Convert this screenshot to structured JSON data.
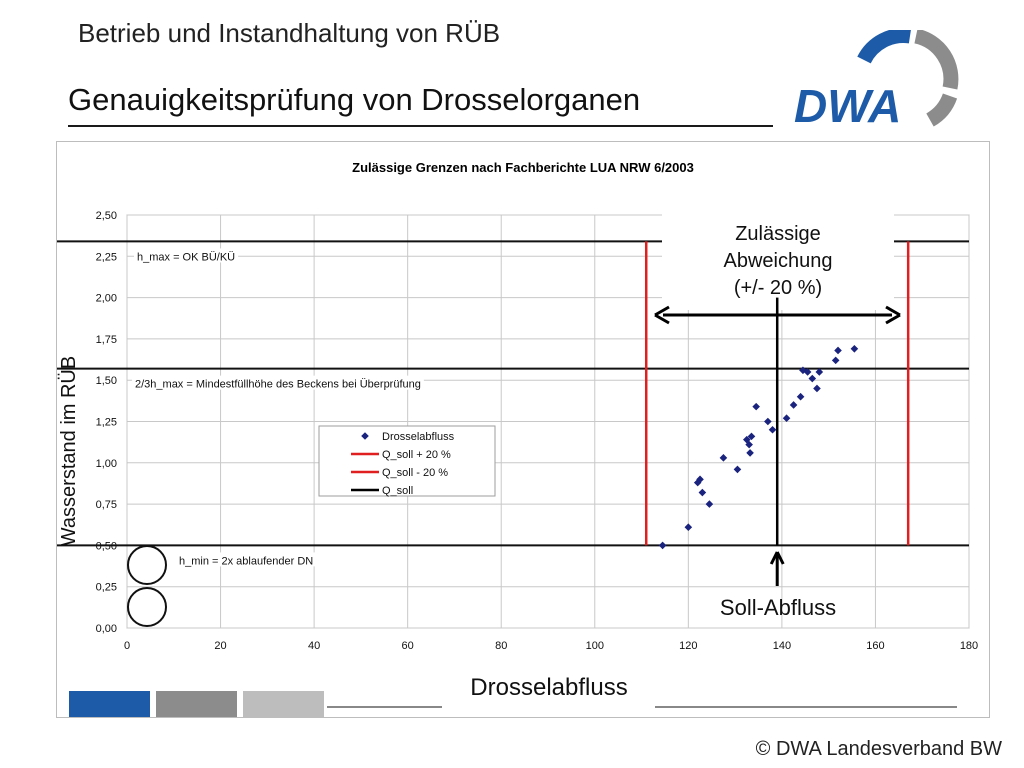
{
  "header": {
    "supertitle": "Betrieb und Instandhaltung von RÜB",
    "title": "Genauigkeitsprüfung von Drosselorganen",
    "logo_text": "DWA",
    "brand_blue": "#1d5ba8",
    "brand_gray": "#8c8c8c"
  },
  "footer": {
    "copyright": "© DWA Landesverband BW"
  },
  "chart_data": {
    "type": "scatter",
    "title": "Zulässige Grenzen nach Fachberichte LUA NRW 6/2003",
    "xlabel": "Drosselabfluss",
    "ylabel": "Wasserstand im RÜB",
    "xlim": [
      0,
      180
    ],
    "ylim": [
      0,
      2.5
    ],
    "x_ticks": [
      0,
      20,
      40,
      60,
      80,
      100,
      120,
      140,
      160,
      180
    ],
    "y_ticks": [
      "0,00",
      "0,25",
      "0,50",
      "0,75",
      "1,00",
      "1,25",
      "1,50",
      "1,75",
      "2,00",
      "2,25",
      "2,50"
    ],
    "grid": true,
    "legend": {
      "placement": "center",
      "entries": [
        {
          "name": "Drosselabfluss",
          "marker": "diamond",
          "color": "#1a237e"
        },
        {
          "name": "Q_soll + 20 %",
          "marker": "line",
          "color": "#e02020"
        },
        {
          "name": "Q_soll - 20 %",
          "marker": "line",
          "color": "#e02020"
        },
        {
          "name": "Q_soll",
          "marker": "line",
          "color": "#000000"
        }
      ]
    },
    "series": [
      {
        "name": "Drosselabfluss",
        "kind": "scatter",
        "color": "#1a237e",
        "points": [
          [
            114.5,
            0.5
          ],
          [
            120,
            0.61
          ],
          [
            122,
            0.88
          ],
          [
            122.5,
            0.9
          ],
          [
            123,
            0.82
          ],
          [
            124.5,
            0.75
          ],
          [
            127.5,
            1.03
          ],
          [
            130.5,
            0.96
          ],
          [
            132.5,
            1.14
          ],
          [
            133,
            1.11
          ],
          [
            133.2,
            1.06
          ],
          [
            133.5,
            1.16
          ],
          [
            134.5,
            1.34
          ],
          [
            137,
            1.25
          ],
          [
            138,
            1.2
          ],
          [
            141,
            1.27
          ],
          [
            142.5,
            1.35
          ],
          [
            144,
            1.4
          ],
          [
            144.5,
            1.56
          ],
          [
            145.5,
            1.55
          ],
          [
            146.5,
            1.51
          ],
          [
            147.5,
            1.45
          ],
          [
            148,
            1.55
          ],
          [
            151.5,
            1.62
          ],
          [
            152,
            1.68
          ],
          [
            155.5,
            1.69
          ]
        ]
      },
      {
        "name": "Q_soll + 20 %",
        "kind": "vline",
        "x": 167,
        "y_range": [
          0.5,
          2.34
        ],
        "color": "#e02020"
      },
      {
        "name": "Q_soll - 20 %",
        "kind": "vline",
        "x": 111,
        "y_range": [
          0.5,
          2.34
        ],
        "color": "#e02020"
      },
      {
        "name": "Q_soll",
        "kind": "vline",
        "x": 139,
        "y_range": [
          0.5,
          2.0
        ],
        "color": "#000000"
      }
    ],
    "hlines": [
      {
        "y": 2.34,
        "label": "h_max = OK BÜ/KÜ"
      },
      {
        "y": 1.57,
        "label": "2/3h_max = Mindestfüllhöhe des Beckens bei Überprüfung"
      },
      {
        "y": 0.5,
        "label": "h_min = 2x ablaufender DN"
      }
    ],
    "annotations": {
      "deviation": [
        "Zulässige",
        "Abweichung",
        "(+/- 20 %)"
      ],
      "soll": "Soll-Abfluss"
    },
    "bottom_bar_colors": [
      "#1d5ba8",
      "#8c8c8c",
      "#bdbdbd"
    ]
  }
}
